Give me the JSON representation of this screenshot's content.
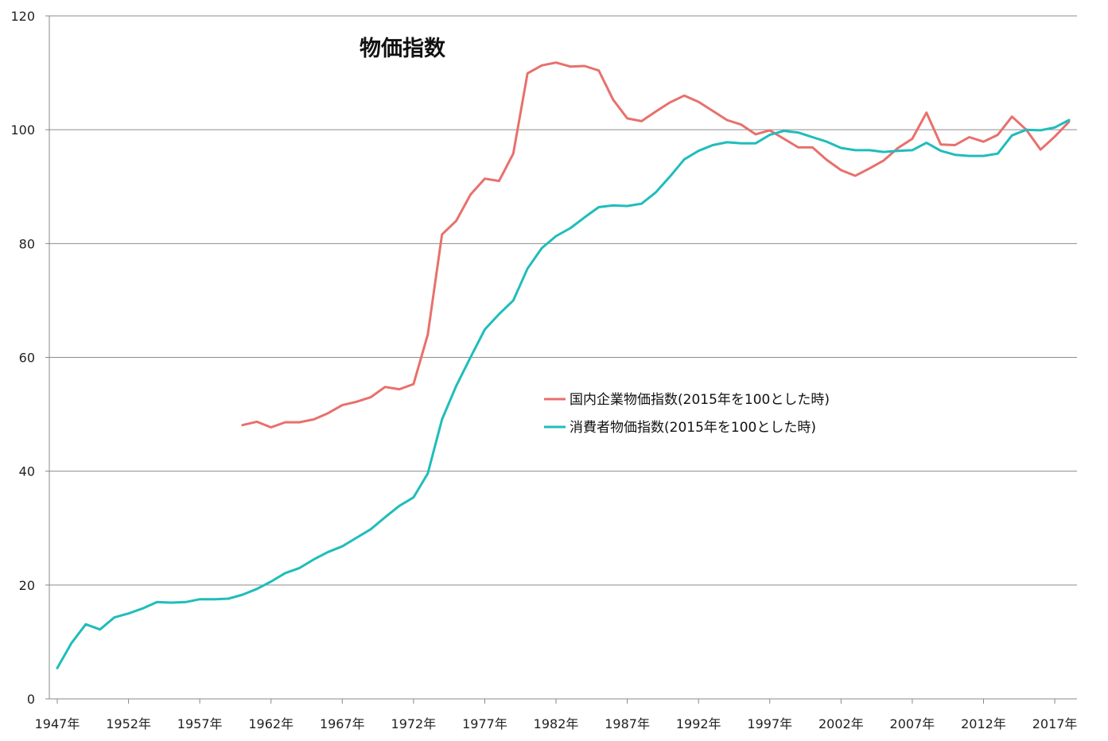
{
  "chart_data": {
    "type": "line",
    "title": "物価指数",
    "xlabel": "",
    "ylabel": "",
    "xlim": [
      1947,
      2018
    ],
    "ylim": [
      0,
      120
    ],
    "y_ticks": [
      0,
      20,
      40,
      60,
      80,
      100,
      120
    ],
    "x_tick_labels": [
      "1947年",
      "1952年",
      "1957年",
      "1962年",
      "1967年",
      "1972年",
      "1977年",
      "1982年",
      "1987年",
      "1992年",
      "1997年",
      "2002年",
      "2007年",
      "2012年",
      "2017年"
    ],
    "grid": "horizontal",
    "legend_position": "center-right",
    "series": [
      {
        "name": "国内企業物価指数(2015年を100とした時)",
        "color": "#E8706C",
        "x": [
          1960,
          1961,
          1962,
          1963,
          1964,
          1965,
          1966,
          1967,
          1968,
          1969,
          1970,
          1971,
          1972,
          1973,
          1974,
          1975,
          1976,
          1977,
          1978,
          1979,
          1980,
          1981,
          1982,
          1983,
          1984,
          1985,
          1986,
          1987,
          1988,
          1989,
          1990,
          1991,
          1992,
          1993,
          1994,
          1995,
          1996,
          1997,
          1998,
          1999,
          2000,
          2001,
          2002,
          2003,
          2004,
          2005,
          2006,
          2007,
          2008,
          2009,
          2010,
          2011,
          2012,
          2013,
          2014,
          2015,
          2016,
          2017,
          2018
        ],
        "values": [
          48.1,
          48.7,
          47.7,
          48.6,
          48.6,
          49.1,
          50.2,
          51.6,
          52.2,
          53.0,
          54.8,
          54.4,
          55.3,
          64.0,
          81.6,
          84.0,
          88.6,
          91.4,
          91.0,
          95.8,
          109.9,
          111.3,
          111.8,
          111.1,
          111.2,
          110.4,
          105.3,
          102.0,
          101.5,
          103.2,
          104.8,
          106.0,
          104.9,
          103.3,
          101.7,
          100.9,
          99.2,
          99.9,
          98.4,
          96.9,
          96.9,
          94.7,
          92.9,
          91.9,
          93.2,
          94.6,
          96.8,
          98.4,
          103.0,
          97.4,
          97.3,
          98.7,
          97.9,
          99.1,
          102.3,
          100.0,
          96.5,
          98.8,
          101.4
        ]
      },
      {
        "name": "消費者物価指数(2015年を100とした時)",
        "color": "#1FBDBB",
        "x": [
          1947,
          1948,
          1949,
          1950,
          1951,
          1952,
          1953,
          1954,
          1955,
          1956,
          1957,
          1958,
          1959,
          1960,
          1961,
          1962,
          1963,
          1964,
          1965,
          1966,
          1967,
          1968,
          1969,
          1970,
          1971,
          1972,
          1973,
          1974,
          1975,
          1976,
          1977,
          1978,
          1979,
          1980,
          1981,
          1982,
          1983,
          1984,
          1985,
          1986,
          1987,
          1988,
          1989,
          1990,
          1991,
          1992,
          1993,
          1994,
          1995,
          1996,
          1997,
          1998,
          1999,
          2000,
          2001,
          2002,
          2003,
          2004,
          2005,
          2006,
          2007,
          2008,
          2009,
          2010,
          2011,
          2012,
          2013,
          2014,
          2015,
          2016,
          2017,
          2018
        ],
        "values": [
          5.4,
          9.8,
          13.1,
          12.2,
          14.3,
          15.0,
          15.9,
          17.0,
          16.9,
          17.0,
          17.5,
          17.5,
          17.6,
          18.3,
          19.3,
          20.6,
          22.1,
          23.0,
          24.5,
          25.8,
          26.8,
          28.3,
          29.8,
          31.9,
          33.9,
          35.4,
          39.6,
          49.1,
          55.0,
          60.0,
          64.9,
          67.6,
          70.0,
          75.6,
          79.2,
          81.3,
          82.7,
          84.6,
          86.4,
          86.7,
          86.6,
          87.0,
          89.0,
          91.8,
          94.8,
          96.3,
          97.3,
          97.8,
          97.6,
          97.6,
          99.1,
          99.8,
          99.5,
          98.7,
          97.9,
          96.8,
          96.4,
          96.4,
          96.1,
          96.3,
          96.4,
          97.7,
          96.3,
          95.6,
          95.4,
          95.4,
          95.8,
          99.0,
          100.0,
          99.9,
          100.4,
          101.7
        ]
      }
    ]
  }
}
